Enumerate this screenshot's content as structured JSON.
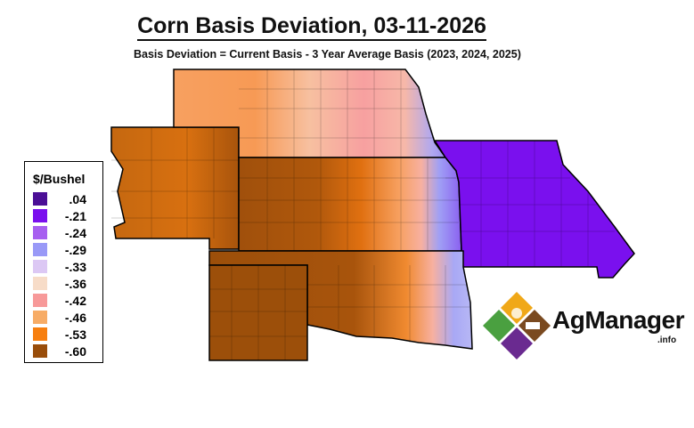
{
  "title": "Corn Basis Deviation, 03-11-2026",
  "subtitle": "Basis Deviation = Current Basis - 3 Year Average Basis (2023, 2024, 2025)",
  "legend": {
    "title": "$/Bushel",
    "items": [
      {
        "label": ".04",
        "color": "#4b0f96"
      },
      {
        "label": "-.21",
        "color": "#7a0fee"
      },
      {
        "label": "-.24",
        "color": "#a75ff0"
      },
      {
        "label": "-.29",
        "color": "#9999f7"
      },
      {
        "label": "-.33",
        "color": "#dcc8f4"
      },
      {
        "label": "-.36",
        "color": "#f7dcc8"
      },
      {
        "label": "-.42",
        "color": "#f79999"
      },
      {
        "label": "-.46",
        "color": "#f7ac66"
      },
      {
        "label": "-.53",
        "color": "#f77f0f"
      },
      {
        "label": "-.60",
        "color": "#994d0a"
      }
    ]
  },
  "regions": [
    "Nebraska",
    "Colorado",
    "Kansas",
    "Missouri",
    "Oklahoma",
    "Texas Panhandle"
  ],
  "logo": {
    "name": "AgManager",
    "suffix": ".info"
  }
}
